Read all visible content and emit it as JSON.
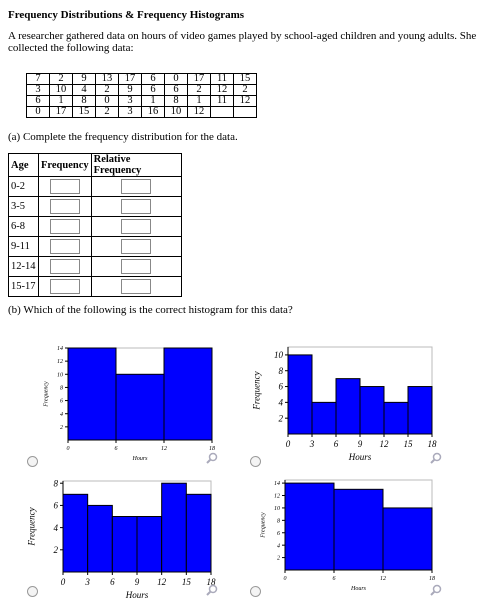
{
  "title": "Frequency Distributions & Frequency Histograms",
  "intro": "A researcher gathered data on hours of video games played by school-aged children and young adults. She collected the following data:",
  "data_table": {
    "rows": [
      [
        7,
        2,
        9,
        13,
        17,
        6,
        0,
        17,
        11,
        15
      ],
      [
        3,
        10,
        4,
        2,
        9,
        6,
        6,
        2,
        12,
        2
      ],
      [
        6,
        1,
        8,
        0,
        3,
        1,
        8,
        1,
        11,
        12
      ],
      [
        0,
        17,
        15,
        2,
        3,
        16,
        10,
        12
      ]
    ]
  },
  "part_a": "(a) Complete the frequency distribution for the data.",
  "freq_table": {
    "headers": [
      "Age",
      "Frequency",
      "Relative Frequency"
    ],
    "rows": [
      "0-2",
      "3-5",
      "6-8",
      "9-11",
      "12-14",
      "15-17"
    ]
  },
  "part_b": "(b) Which of the following is the correct histogram for this data?",
  "histograms": [
    {
      "type": "histogram",
      "bins": [
        0,
        6,
        12,
        18
      ],
      "counts": [
        14,
        10,
        14
      ],
      "xlim": [
        0,
        18
      ],
      "ylim": [
        0,
        14
      ],
      "xticks": [
        0,
        6,
        12,
        18
      ],
      "yticks": [
        2,
        4,
        6,
        8,
        10,
        12,
        14
      ],
      "xlabel": "Hours",
      "ylabel": "Frequency",
      "color": "#0000ff"
    },
    {
      "type": "histogram",
      "bins": [
        0,
        3,
        6,
        9,
        12,
        15,
        18
      ],
      "counts": [
        10,
        4,
        7,
        6,
        4,
        6
      ],
      "xlim": [
        0,
        18
      ],
      "ylim": [
        0,
        11
      ],
      "xticks": [
        0,
        3,
        6,
        9,
        12,
        15,
        18
      ],
      "yticks": [
        2,
        4,
        6,
        8,
        10
      ],
      "xlabel": "Hours",
      "ylabel": "Frequency",
      "color": "#0000ff"
    },
    {
      "type": "histogram",
      "bins": [
        0,
        3,
        6,
        9,
        12,
        15,
        18
      ],
      "counts": [
        7,
        6,
        5,
        5,
        8,
        7
      ],
      "xlim": [
        0,
        18
      ],
      "ylim": [
        0,
        8.2
      ],
      "xticks": [
        0,
        3,
        6,
        9,
        12,
        15,
        18
      ],
      "yticks": [
        2,
        4,
        6,
        8
      ],
      "xlabel": "Hours",
      "ylabel": "Frequency",
      "color": "#0000ff"
    },
    {
      "type": "histogram",
      "bins": [
        0,
        6,
        12,
        18
      ],
      "counts": [
        14,
        13,
        10
      ],
      "xlim": [
        0,
        18
      ],
      "ylim": [
        0,
        14.5
      ],
      "xticks": [
        0,
        6,
        12,
        18
      ],
      "yticks": [
        2,
        4,
        6,
        8,
        10,
        12,
        14
      ],
      "xlabel": "Hours",
      "ylabel": "Frequency",
      "color": "#0000ff"
    }
  ]
}
